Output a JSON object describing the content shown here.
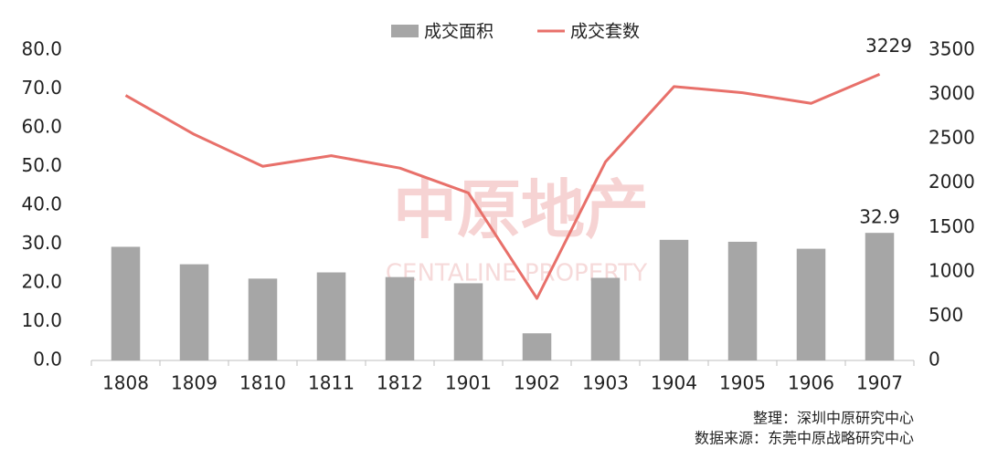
{
  "chart_data": {
    "type": "bar-line",
    "categories": [
      "1808",
      "1809",
      "1810",
      "1811",
      "1812",
      "1901",
      "1902",
      "1903",
      "1904",
      "1905",
      "1906",
      "1907"
    ],
    "series": [
      {
        "name": "成交面积",
        "type": "bar",
        "color": "#a6a6a6",
        "axis": "y",
        "values": [
          29.3,
          24.8,
          21.1,
          22.7,
          21.5,
          19.9,
          7.0,
          21.3,
          31.1,
          30.6,
          28.8,
          32.9
        ],
        "value_labels": [
          null,
          null,
          null,
          null,
          null,
          null,
          null,
          null,
          null,
          null,
          null,
          "32.9"
        ]
      },
      {
        "name": "成交套数",
        "type": "line",
        "color": "#e8706a",
        "axis": "y2",
        "values": [
          2990,
          2550,
          2190,
          2310,
          2170,
          1890,
          700,
          2240,
          3090,
          3020,
          2900,
          3229
        ],
        "value_labels": [
          null,
          null,
          null,
          null,
          null,
          null,
          null,
          null,
          null,
          null,
          null,
          "3229"
        ]
      }
    ],
    "ylim": [
      0,
      80
    ],
    "yticks": [
      {
        "value": 0,
        "label": "0.0"
      },
      {
        "value": 10,
        "label": "10.0"
      },
      {
        "value": 20,
        "label": "20.0"
      },
      {
        "value": 30,
        "label": "30.0"
      },
      {
        "value": 40,
        "label": "40.0"
      },
      {
        "value": 50,
        "label": "50.0"
      },
      {
        "value": 60,
        "label": "60.0"
      },
      {
        "value": 70,
        "label": "70.0"
      },
      {
        "value": 80,
        "label": "80.0"
      }
    ],
    "y2lim": [
      0,
      3500
    ],
    "y2ticks": [
      0,
      500,
      1000,
      1500,
      2000,
      2500,
      3000,
      3500
    ],
    "grid": false,
    "legend": "top",
    "watermark": {
      "cn": "中原地产",
      "en": "CENTALINE PROPERTY"
    },
    "notes": [
      "整理：深圳中原研究中心",
      "数据来源：东莞中原战略研究中心"
    ]
  }
}
